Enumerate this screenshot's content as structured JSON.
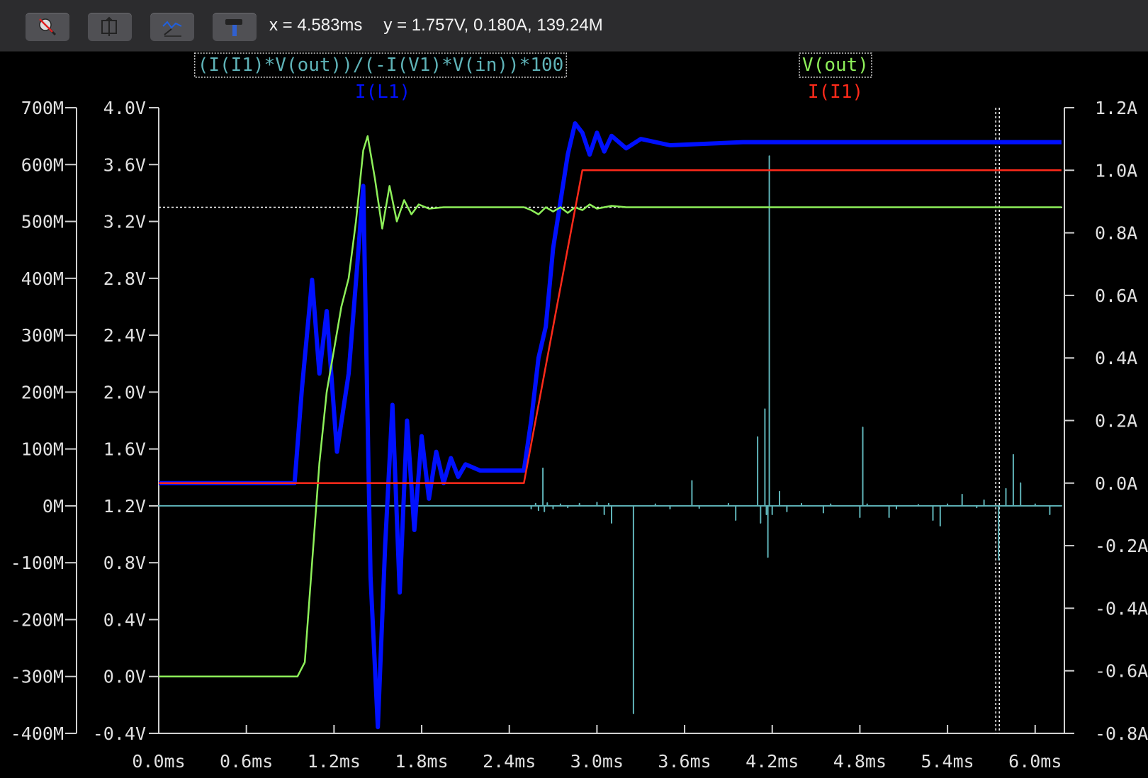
{
  "toolbar": {
    "buttons": [
      {
        "icon": "zoom-cancel-icon"
      },
      {
        "icon": "autorange-icon"
      },
      {
        "icon": "mark-data-points-icon"
      },
      {
        "icon": "hammer-icon"
      }
    ],
    "cursor_x": "x = 4.583ms",
    "cursor_y": "y = 1.757V, 0.180A, 139.24M"
  },
  "colors": {
    "background": "#000000",
    "efficiency": "#5fb3b8",
    "v_out": "#8ef05a",
    "i_l1": "#0010ff",
    "i_i1": "#ff2a1a",
    "axis": "#d0d0d0"
  },
  "chart_data": {
    "type": "line",
    "x_unit": "ms",
    "xlim": [
      0.0,
      6.2
    ],
    "x_ticks": [
      "0.0ms",
      "0.6ms",
      "1.2ms",
      "1.8ms",
      "2.4ms",
      "3.0ms",
      "3.6ms",
      "4.2ms",
      "4.8ms",
      "5.4ms",
      "6.0ms"
    ],
    "y_axes": {
      "left_outer": {
        "range": [
          -400,
          700
        ],
        "ticks": [
          "700M",
          "600M",
          "500M",
          "400M",
          "300M",
          "200M",
          "100M",
          "0M",
          "-100M",
          "-200M",
          "-300M",
          "-400M"
        ]
      },
      "left_inner": {
        "range": [
          -0.4,
          4.0
        ],
        "ticks": [
          "4.0V",
          "3.6V",
          "3.2V",
          "2.8V",
          "2.4V",
          "2.0V",
          "1.6V",
          "1.2V",
          "0.8V",
          "0.4V",
          "0.0V",
          "-0.4V"
        ]
      },
      "right": {
        "range": [
          -0.8,
          1.2
        ],
        "ticks": [
          "1.2A",
          "1.0A",
          "0.8A",
          "0.6A",
          "0.4A",
          "0.2A",
          "0.0A",
          "-0.2A",
          "-0.4A",
          "-0.6A",
          "-0.8A"
        ]
      }
    },
    "cursor_x": 5.74,
    "cursor_y_v": 3.3,
    "series": [
      {
        "name": "(I(I1)*V(out))/(-I(V1)*V(in))*100",
        "axis": "left_outer",
        "baseline": 0,
        "points": [
          [
            0.0,
            0
          ],
          [
            2.52,
            0
          ],
          [
            2.55,
            -5
          ],
          [
            2.58,
            4
          ],
          [
            2.6,
            -8
          ],
          [
            2.63,
            66
          ],
          [
            2.64,
            -10
          ],
          [
            2.66,
            5
          ],
          [
            2.7,
            -5
          ],
          [
            2.75,
            3
          ],
          [
            2.8,
            -3
          ],
          [
            2.88,
            4
          ],
          [
            3.0,
            6
          ],
          [
            3.05,
            -15
          ],
          [
            3.08,
            4
          ],
          [
            3.1,
            -30
          ],
          [
            3.25,
            -365
          ],
          [
            3.4,
            3
          ],
          [
            3.5,
            -5
          ],
          [
            3.65,
            44
          ],
          [
            3.7,
            -4
          ],
          [
            3.9,
            4
          ],
          [
            3.95,
            -25
          ],
          [
            4.1,
            121
          ],
          [
            4.12,
            -30
          ],
          [
            4.15,
            170
          ],
          [
            4.16,
            -15
          ],
          [
            4.17,
            -90
          ],
          [
            4.18,
            615
          ],
          [
            4.2,
            -15
          ],
          [
            4.25,
            25
          ],
          [
            4.3,
            -10
          ],
          [
            4.4,
            4
          ],
          [
            4.55,
            -12
          ],
          [
            4.6,
            3
          ],
          [
            4.8,
            -20
          ],
          [
            4.82,
            138
          ],
          [
            4.85,
            3
          ],
          [
            5.0,
            -20
          ],
          [
            5.05,
            -5
          ],
          [
            5.2,
            2
          ],
          [
            5.3,
            -25
          ],
          [
            5.35,
            -35
          ],
          [
            5.4,
            3
          ],
          [
            5.5,
            20
          ],
          [
            5.6,
            -3
          ],
          [
            5.65,
            10
          ],
          [
            5.75,
            -95
          ],
          [
            5.8,
            30
          ],
          [
            5.85,
            90
          ],
          [
            5.9,
            40
          ],
          [
            6.0,
            3
          ],
          [
            6.1,
            -15
          ],
          [
            6.18,
            0
          ]
        ]
      },
      {
        "name": "V(out)",
        "axis": "left_inner",
        "points": [
          [
            0.0,
            0.0
          ],
          [
            0.95,
            0.0
          ],
          [
            1.0,
            0.1
          ],
          [
            1.05,
            0.8
          ],
          [
            1.1,
            1.5
          ],
          [
            1.15,
            2.0
          ],
          [
            1.2,
            2.3
          ],
          [
            1.25,
            2.6
          ],
          [
            1.3,
            2.8
          ],
          [
            1.35,
            3.2
          ],
          [
            1.4,
            3.7
          ],
          [
            1.43,
            3.8
          ],
          [
            1.48,
            3.5
          ],
          [
            1.53,
            3.15
          ],
          [
            1.58,
            3.45
          ],
          [
            1.63,
            3.2
          ],
          [
            1.68,
            3.35
          ],
          [
            1.73,
            3.25
          ],
          [
            1.78,
            3.32
          ],
          [
            1.85,
            3.29
          ],
          [
            1.95,
            3.3
          ],
          [
            2.5,
            3.3
          ],
          [
            2.55,
            3.28
          ],
          [
            2.6,
            3.25
          ],
          [
            2.65,
            3.3
          ],
          [
            2.7,
            3.27
          ],
          [
            2.75,
            3.3
          ],
          [
            2.8,
            3.26
          ],
          [
            2.85,
            3.3
          ],
          [
            2.9,
            3.28
          ],
          [
            2.95,
            3.32
          ],
          [
            3.0,
            3.29
          ],
          [
            3.1,
            3.31
          ],
          [
            3.2,
            3.3
          ],
          [
            6.18,
            3.3
          ]
        ]
      },
      {
        "name": "I(L1)",
        "axis": "right",
        "points": [
          [
            0.0,
            0.0
          ],
          [
            0.93,
            0.0
          ],
          [
            0.98,
            0.3
          ],
          [
            1.05,
            0.65
          ],
          [
            1.1,
            0.35
          ],
          [
            1.15,
            0.55
          ],
          [
            1.22,
            0.1
          ],
          [
            1.3,
            0.35
          ],
          [
            1.36,
            0.7
          ],
          [
            1.4,
            0.95
          ],
          [
            1.45,
            -0.3
          ],
          [
            1.5,
            -0.78
          ],
          [
            1.55,
            -0.2
          ],
          [
            1.6,
            0.25
          ],
          [
            1.65,
            -0.35
          ],
          [
            1.7,
            0.2
          ],
          [
            1.75,
            -0.15
          ],
          [
            1.8,
            0.15
          ],
          [
            1.85,
            -0.05
          ],
          [
            1.9,
            0.1
          ],
          [
            1.95,
            0.0
          ],
          [
            2.0,
            0.08
          ],
          [
            2.05,
            0.02
          ],
          [
            2.1,
            0.06
          ],
          [
            2.2,
            0.04
          ],
          [
            2.5,
            0.04
          ],
          [
            2.55,
            0.2
          ],
          [
            2.6,
            0.4
          ],
          [
            2.65,
            0.5
          ],
          [
            2.7,
            0.75
          ],
          [
            2.75,
            0.9
          ],
          [
            2.8,
            1.05
          ],
          [
            2.85,
            1.15
          ],
          [
            2.9,
            1.12
          ],
          [
            2.95,
            1.05
          ],
          [
            3.0,
            1.12
          ],
          [
            3.05,
            1.06
          ],
          [
            3.1,
            1.11
          ],
          [
            3.2,
            1.07
          ],
          [
            3.3,
            1.1
          ],
          [
            3.5,
            1.08
          ],
          [
            4.0,
            1.09
          ],
          [
            6.18,
            1.09
          ]
        ]
      },
      {
        "name": "I(I1)",
        "axis": "right",
        "points": [
          [
            0.0,
            0.0
          ],
          [
            2.5,
            0.0
          ],
          [
            2.9,
            1.0
          ],
          [
            6.18,
            1.0
          ]
        ]
      }
    ]
  }
}
